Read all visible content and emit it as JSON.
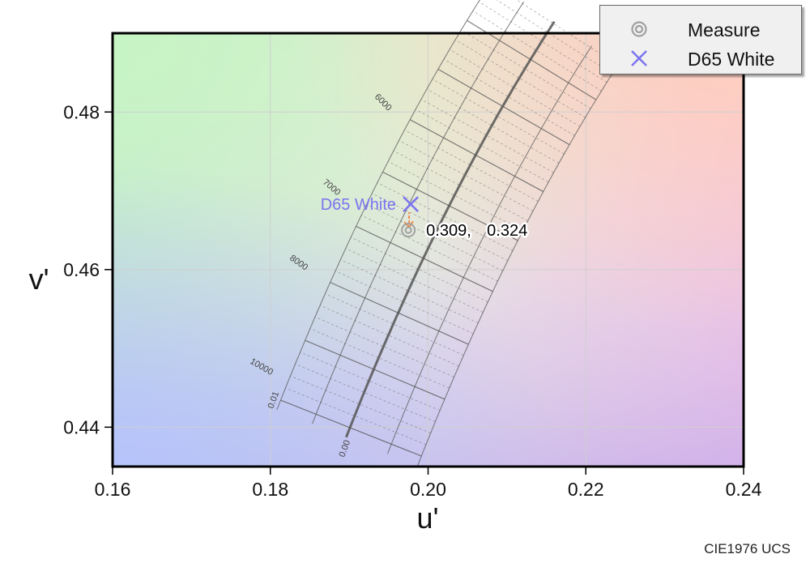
{
  "chart_data": {
    "type": "scatter",
    "title": "",
    "xlabel": "u'",
    "ylabel": "v'",
    "xlim": [
      0.16,
      0.24
    ],
    "ylim": [
      0.435,
      0.49
    ],
    "x_ticks": [
      "0.16",
      "0.18",
      "0.20",
      "0.22",
      "0.24"
    ],
    "y_ticks": [
      "0.44",
      "0.46",
      "0.48"
    ],
    "grid": true,
    "legend": {
      "placement": "top-right",
      "entries": [
        {
          "label": "Measure",
          "marker": "double-circle",
          "color": "#a0a0a0"
        },
        {
          "label": "D65 White",
          "marker": "x",
          "color": "#7b73ee"
        }
      ]
    },
    "series": [
      {
        "name": "Measure",
        "points": [
          {
            "x": 0.1975,
            "y": 0.465
          }
        ]
      },
      {
        "name": "D65 White",
        "points": [
          {
            "x": 0.1978,
            "y": 0.4683
          }
        ]
      }
    ],
    "annotations": {
      "measure_label_x": "0.309,",
      "measure_label_y": "0.324",
      "d65_label": "D65 White"
    },
    "isotemperature_labels": [
      "6000",
      "7000",
      "8000",
      "10000"
    ],
    "duv_labels": [
      "0.01",
      "0.00"
    ],
    "caption": "CIE1976 UCS"
  },
  "colors": {
    "measure": "#a0a0a0",
    "d65": "#7b73ee",
    "measure_arrow": "#f08a4b",
    "locus": "#555555"
  }
}
